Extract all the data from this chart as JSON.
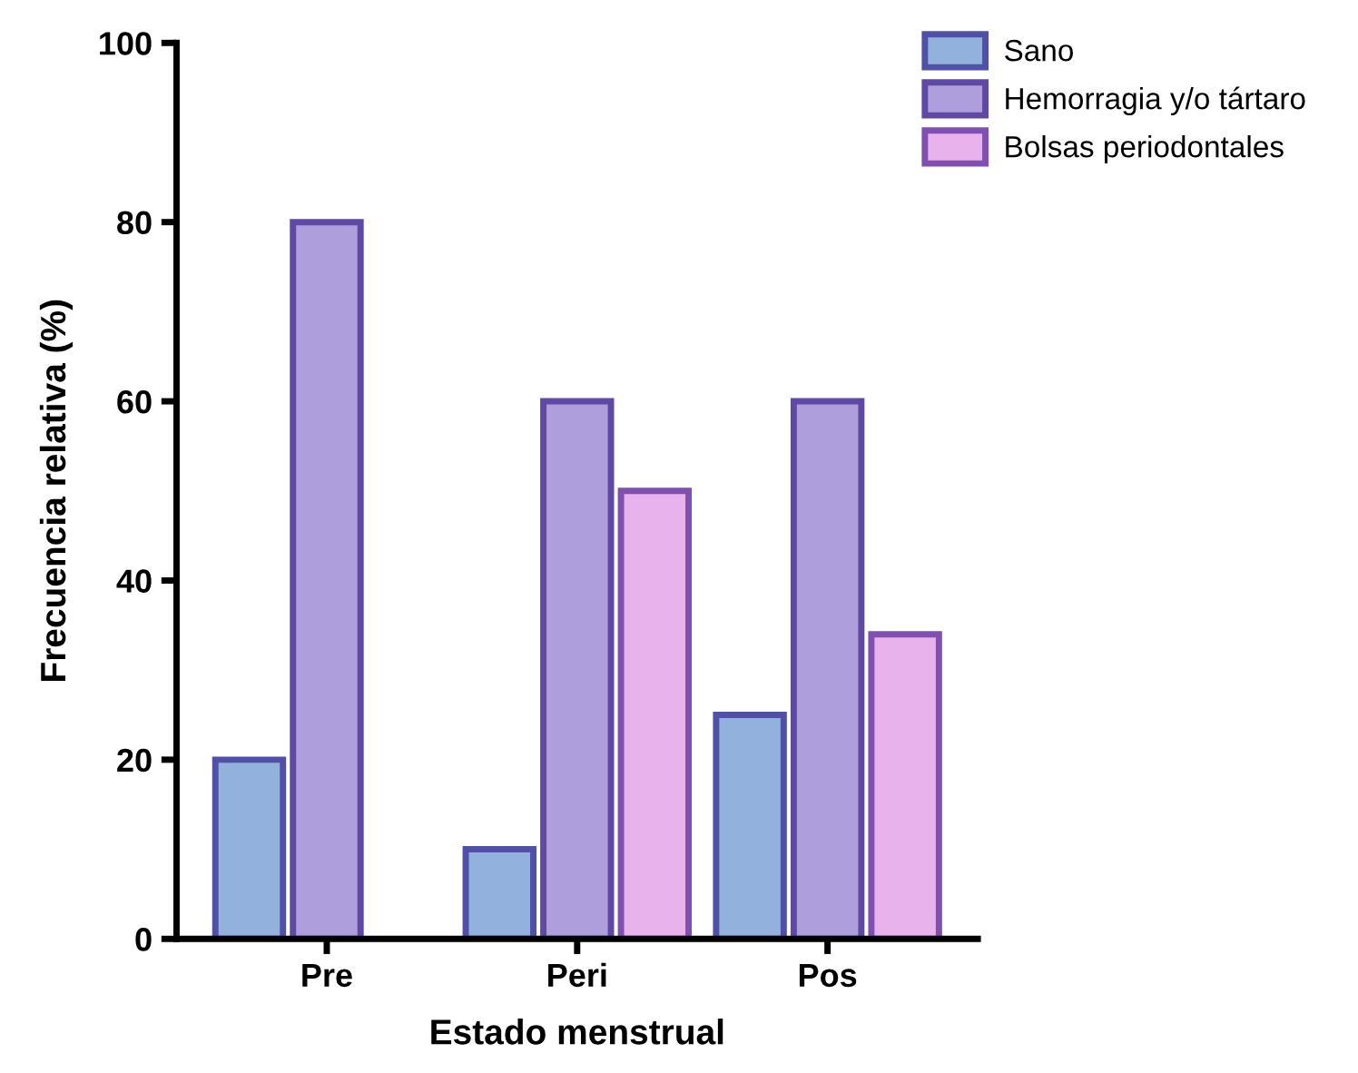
{
  "chart_data": {
    "type": "bar",
    "xlabel": "Estado menstrual",
    "ylabel": "Frecuencia relativa (%)",
    "categories": [
      "Pre",
      "Peri",
      "Pos"
    ],
    "series": [
      {
        "name": "Sano",
        "color": "#92b2dd",
        "values": [
          20,
          10,
          25
        ]
      },
      {
        "name": "Hemorragia y/o tártaro",
        "color": "#ae9fdc",
        "values": [
          80,
          60,
          60
        ]
      },
      {
        "name": "Bolsas periodontales",
        "color": "#e8b2ec",
        "values": [
          null,
          50,
          34
        ]
      }
    ],
    "ylim": [
      0,
      100
    ],
    "yticks": [
      0,
      20,
      40,
      60,
      80,
      100
    ],
    "grid": false,
    "legend": "top right"
  }
}
